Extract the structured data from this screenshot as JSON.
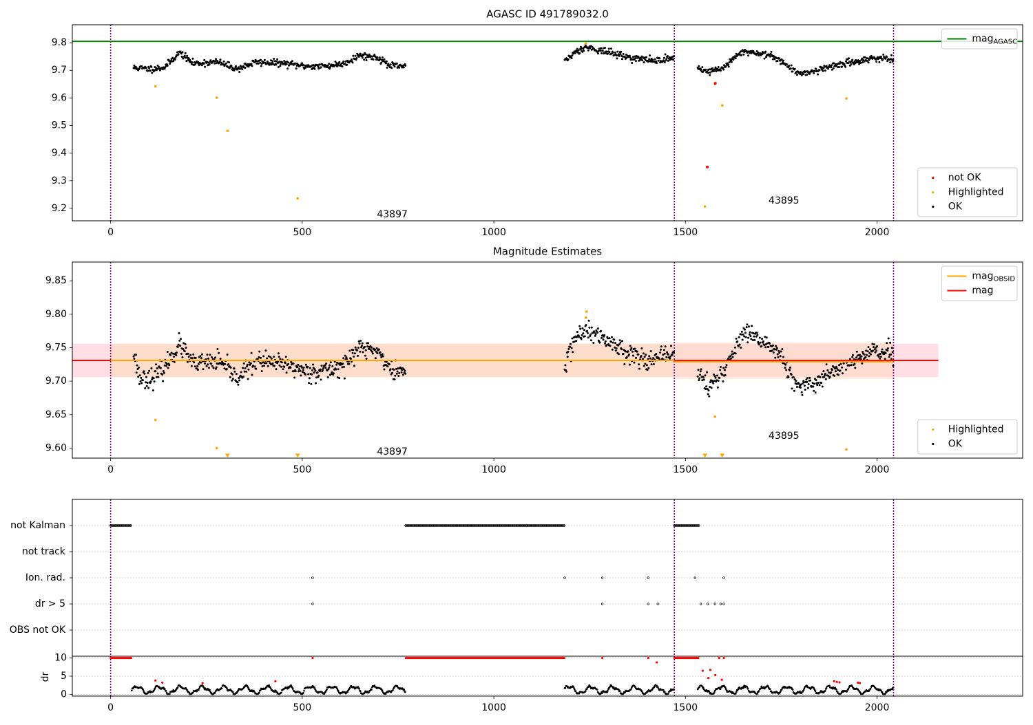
{
  "colors": {
    "ok": "#000000",
    "highlighted": "#ffa500",
    "not_ok": "#ff0000",
    "agasc_line": "#008000",
    "obsid_line": "#ffa500",
    "mag_line": "#ff0000",
    "mag_band": "#ffc0cb",
    "obsid_band": "#ffdab9",
    "obs_boundary": "#800080"
  },
  "chart_data": [
    {
      "type": "scatter",
      "title": "AGASC ID 491789032.0",
      "xlim": [
        -100,
        2380
      ],
      "ylim": [
        9.155,
        9.865
      ],
      "xticks": [
        0,
        500,
        1000,
        1500,
        2000
      ],
      "yticks": [
        9.2,
        9.3,
        9.4,
        9.5,
        9.6,
        9.7,
        9.8
      ],
      "xtick_labels": [
        "0",
        "500",
        "1000",
        "1500",
        "2000"
      ],
      "ytick_labels": [
        "9.2",
        "9.3",
        "9.4",
        "9.5",
        "9.6",
        "9.7",
        "9.8"
      ],
      "obs_boundaries": [
        0,
        1471,
        2043
      ],
      "annotations": [
        {
          "text": "43897",
          "x": 735,
          "y": 9.177
        },
        {
          "text": "43895",
          "x": 1757,
          "y": 9.227
        }
      ],
      "hlines": [
        {
          "name": "mag_AGASC",
          "y": 9.805,
          "color": "#008000"
        }
      ],
      "legends": [
        {
          "loc": "top-right",
          "entries": [
            {
              "label": "mag",
              "sub": "AGASC",
              "kind": "line",
              "color": "#008000"
            }
          ]
        },
        {
          "loc": "bottom-right",
          "entries": [
            {
              "label": "not OK",
              "kind": "dot",
              "color": "#ff0000"
            },
            {
              "label": "Highlighted",
              "kind": "dot",
              "color": "#ffa500"
            },
            {
              "label": "OK",
              "kind": "dot",
              "color": "#000000"
            }
          ]
        }
      ],
      "segments": [
        {
          "x0": 60,
          "x1": 770,
          "knots": [
            [
              60,
              9.71
            ],
            [
              100,
              9.705
            ],
            [
              140,
              9.71
            ],
            [
              180,
              9.765
            ],
            [
              215,
              9.725
            ],
            [
              280,
              9.73
            ],
            [
              330,
              9.705
            ],
            [
              380,
              9.73
            ],
            [
              450,
              9.725
            ],
            [
              510,
              9.715
            ],
            [
              560,
              9.715
            ],
            [
              610,
              9.725
            ],
            [
              650,
              9.755
            ],
            [
              700,
              9.745
            ],
            [
              730,
              9.715
            ],
            [
              770,
              9.715
            ]
          ],
          "noise": 0.011
        },
        {
          "x0": 1185,
          "x1": 1471,
          "knots": [
            [
              1185,
              9.73
            ],
            [
              1210,
              9.765
            ],
            [
              1240,
              9.785
            ],
            [
              1300,
              9.765
            ],
            [
              1360,
              9.745
            ],
            [
              1420,
              9.735
            ],
            [
              1471,
              9.745
            ]
          ],
          "noise": 0.011
        },
        {
          "x0": 1532,
          "x1": 2043,
          "knots": [
            [
              1532,
              9.71
            ],
            [
              1560,
              9.695
            ],
            [
              1600,
              9.71
            ],
            [
              1650,
              9.77
            ],
            [
              1700,
              9.76
            ],
            [
              1740,
              9.745
            ],
            [
              1790,
              9.69
            ],
            [
              1830,
              9.695
            ],
            [
              1880,
              9.715
            ],
            [
              1940,
              9.73
            ],
            [
              1990,
              9.745
            ],
            [
              2043,
              9.74
            ]
          ],
          "noise": 0.011
        }
      ],
      "highlighted": [
        [
          117,
          9.642
        ],
        [
          277,
          9.601
        ],
        [
          305,
          9.481
        ],
        [
          488,
          9.236
        ],
        [
          1551,
          9.207
        ],
        [
          1577,
          9.651
        ],
        [
          1596,
          9.573
        ],
        [
          1920,
          9.598
        ],
        [
          1240,
          9.797
        ]
      ],
      "not_ok": [
        [
          1557,
          9.35
        ],
        [
          1578,
          9.653
        ]
      ]
    },
    {
      "type": "scatter",
      "title": "Magnitude Estimates",
      "xlim": [
        -100,
        2380
      ],
      "ylim": [
        9.585,
        9.878
      ],
      "xticks": [
        0,
        500,
        1000,
        1500,
        2000
      ],
      "yticks": [
        9.6,
        9.65,
        9.7,
        9.75,
        9.8,
        9.85
      ],
      "xtick_labels": [
        "0",
        "500",
        "1000",
        "1500",
        "2000"
      ],
      "ytick_labels": [
        "9.60",
        "9.65",
        "9.70",
        "9.75",
        "9.80",
        "9.85"
      ],
      "obs_boundaries": [
        0,
        1471,
        2043
      ],
      "annotations": [
        {
          "text": "43897",
          "x": 735,
          "y": 9.594
        },
        {
          "text": "43895",
          "x": 1757,
          "y": 9.618
        }
      ],
      "bands": [
        {
          "name": "mag",
          "x0": -100,
          "x1": 2160,
          "y0": 9.706,
          "y1": 9.756,
          "color": "#ffc0cb",
          "opacity": 0.5
        },
        {
          "name": "43897",
          "x0": 0,
          "x1": 1471,
          "y0": 9.706,
          "y1": 9.756,
          "color": "#ffdab9",
          "opacity": 0.55
        },
        {
          "name": "43895",
          "x0": 1471,
          "x1": 2043,
          "y0": 9.703,
          "y1": 9.758,
          "color": "#ffdab9",
          "opacity": 0.45
        }
      ],
      "hlines": [
        {
          "name": "mag",
          "x0": -100,
          "x1": 2160,
          "y": 9.731,
          "color": "#ff0000"
        },
        {
          "name": "mag_OBSID",
          "x0": 0,
          "x1": 1471,
          "y": 9.731,
          "color": "#ffa500"
        },
        {
          "name": "mag_OBSID",
          "x0": 1471,
          "x1": 2043,
          "y": 9.729,
          "color": "#ffa500"
        }
      ],
      "legends": [
        {
          "loc": "top-right",
          "entries": [
            {
              "label": "mag",
              "sub": "OBSID",
              "kind": "line",
              "color": "#ffa500"
            },
            {
              "label": "mag",
              "kind": "line",
              "color": "#ff0000"
            }
          ]
        },
        {
          "loc": "bottom-right",
          "entries": [
            {
              "label": "Highlighted",
              "kind": "dot",
              "color": "#ffa500"
            },
            {
              "label": "OK",
              "kind": "dot",
              "color": "#000000"
            }
          ]
        }
      ],
      "segments": [
        {
          "x0": 60,
          "x1": 770,
          "knots": [
            [
              60,
              9.745
            ],
            [
              75,
              9.705
            ],
            [
              110,
              9.705
            ],
            [
              140,
              9.72
            ],
            [
              180,
              9.755
            ],
            [
              215,
              9.725
            ],
            [
              280,
              9.73
            ],
            [
              330,
              9.705
            ],
            [
              380,
              9.73
            ],
            [
              450,
              9.725
            ],
            [
              510,
              9.715
            ],
            [
              560,
              9.715
            ],
            [
              610,
              9.725
            ],
            [
              650,
              9.75
            ],
            [
              700,
              9.745
            ],
            [
              730,
              9.715
            ],
            [
              770,
              9.715
            ]
          ],
          "noise": 0.013
        },
        {
          "x0": 1185,
          "x1": 1471,
          "knots": [
            [
              1185,
              9.72
            ],
            [
              1210,
              9.765
            ],
            [
              1240,
              9.775
            ],
            [
              1300,
              9.76
            ],
            [
              1360,
              9.74
            ],
            [
              1420,
              9.73
            ],
            [
              1471,
              9.745
            ]
          ],
          "noise": 0.013
        },
        {
          "x0": 1532,
          "x1": 2043,
          "knots": [
            [
              1532,
              9.715
            ],
            [
              1560,
              9.69
            ],
            [
              1600,
              9.715
            ],
            [
              1650,
              9.77
            ],
            [
              1700,
              9.76
            ],
            [
              1740,
              9.745
            ],
            [
              1790,
              9.69
            ],
            [
              1830,
              9.695
            ],
            [
              1880,
              9.715
            ],
            [
              1940,
              9.73
            ],
            [
              1990,
              9.745
            ],
            [
              2043,
              9.74
            ]
          ],
          "noise": 0.013
        }
      ],
      "highlighted": [
        [
          117,
          9.642
        ],
        [
          277,
          9.6
        ],
        [
          1577,
          9.647
        ],
        [
          1920,
          9.598
        ],
        [
          1242,
          9.804
        ],
        [
          1240,
          9.795
        ]
      ],
      "highlighted_clipped": [
        305,
        488,
        1551,
        1596
      ]
    },
    {
      "type": "scatter",
      "title": "",
      "xlim": [
        -100,
        2380
      ],
      "xticks": [
        0,
        500,
        1000,
        1500,
        2000
      ],
      "xtick_labels": [
        "0",
        "500",
        "1000",
        "1500",
        "2000"
      ],
      "obs_boundaries": [
        0,
        1471,
        2043
      ],
      "flag_rows": [
        "not Kalman",
        "not track",
        "Ion. rad.",
        "dr > 5",
        "OBS not OK"
      ],
      "flags": {
        "not Kalman": {
          "ranges": [
            [
              0,
              55
            ],
            [
              770,
              1185
            ],
            [
              1471,
              1535
            ]
          ],
          "points": []
        },
        "not track": {
          "ranges": [],
          "points": []
        },
        "Ion. rad.": {
          "ranges": [],
          "points": [
            527,
            1185,
            1283,
            1403,
            1525,
            1600
          ]
        },
        "dr > 5": {
          "ranges": [],
          "points": [
            527,
            1283,
            1403,
            1428,
            1540,
            1558,
            1577,
            1592,
            1600
          ]
        },
        "OBS not OK": {
          "ranges": [],
          "points": []
        }
      },
      "dr": {
        "ylabel": "dr",
        "ylim": [
          -0.5,
          10.5
        ],
        "yticks": [
          0,
          5,
          10
        ],
        "ytick_labels": [
          "0",
          "5",
          "10"
        ],
        "segments": [
          [
            55,
            770
          ],
          [
            1185,
            1471
          ],
          [
            1532,
            2043
          ]
        ],
        "capped_ranges": [
          [
            0,
            55
          ],
          [
            770,
            1185
          ],
          [
            1471,
            1535
          ]
        ],
        "capped_points": [
          527,
          1283,
          1403,
          1588,
          1600
        ],
        "red_points": [
          [
            117,
            3.8
          ],
          [
            135,
            3.2
          ],
          [
            240,
            3.1
          ],
          [
            430,
            3.6
          ],
          [
            1425,
            8.8
          ],
          [
            1545,
            6.5
          ],
          [
            1560,
            4.5
          ],
          [
            1565,
            6.7
          ],
          [
            1578,
            5.3
          ],
          [
            1595,
            4.0
          ],
          [
            1888,
            3.6
          ],
          [
            1895,
            3.4
          ],
          [
            1902,
            3.3
          ],
          [
            1950,
            3.2
          ],
          [
            1955,
            3.1
          ]
        ]
      }
    }
  ]
}
